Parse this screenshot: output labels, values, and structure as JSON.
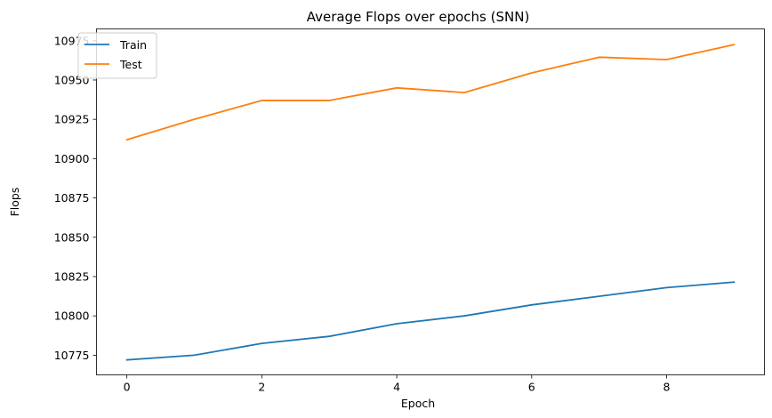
{
  "chart_data": {
    "type": "line",
    "title": "Average Flops over epochs (SNN)",
    "xlabel": "Epoch",
    "ylabel": "Flops",
    "xlim": [
      -0.45,
      9.45
    ],
    "ylim": [
      10762.5,
      10982.5
    ],
    "xticks": [
      0,
      2,
      4,
      6,
      8
    ],
    "yticks": [
      10775,
      10800,
      10825,
      10850,
      10875,
      10900,
      10925,
      10950,
      10975
    ],
    "grid": false,
    "legend_position": "upper-left",
    "x": [
      0,
      1,
      2,
      3,
      4,
      5,
      6,
      7,
      8,
      9
    ],
    "series": [
      {
        "name": "Train",
        "color": "#1f77b4",
        "values": [
          10772,
          10775,
          10782.5,
          10787,
          10795,
          10800,
          10807,
          10812.5,
          10818,
          10821.5
        ]
      },
      {
        "name": "Test",
        "color": "#ff7f0e",
        "values": [
          10912,
          10925,
          10937,
          10937,
          10945,
          10942,
          10954.5,
          10964.5,
          10963,
          10972.5
        ]
      }
    ]
  }
}
